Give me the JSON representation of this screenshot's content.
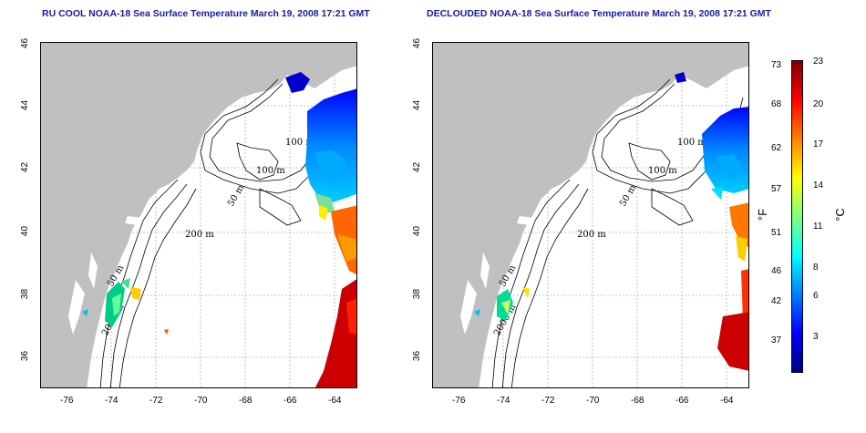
{
  "titles": {
    "left": "RU COOL NOAA-18 Sea Surface Temperature March 19, 2008 17:21 GMT",
    "right": "DECLOUDED NOAA-18 Sea Surface Temperature March 19, 2008 17:21 GMT"
  },
  "axes": {
    "lon_ticks": [
      "-76",
      "-74",
      "-72",
      "-70",
      "-68",
      "-66",
      "-64"
    ],
    "lat_ticks": [
      "46",
      "44",
      "42",
      "40",
      "38",
      "36"
    ]
  },
  "contour_labels": [
    "100 m",
    "100 m",
    "50 m",
    "200 m",
    "50 m",
    "2000 m"
  ],
  "colorbar": {
    "fahrenheit_unit": "°F",
    "celsius_unit": "°C",
    "fahrenheit_ticks": [
      "73",
      "68",
      "62",
      "57",
      "51",
      "46",
      "42",
      "37"
    ],
    "celsius_ticks": [
      "23",
      "20",
      "17",
      "14",
      "11",
      "8",
      "6",
      "3"
    ],
    "colors": [
      "#00007f",
      "#0000ff",
      "#007fff",
      "#00ffff",
      "#7fff7f",
      "#ffff00",
      "#ff7f00",
      "#ff0000",
      "#7f0000"
    ]
  },
  "colors": {
    "land": "#c0c0c0",
    "title": "#1a1aa8",
    "grid": "#b0b0b0"
  }
}
